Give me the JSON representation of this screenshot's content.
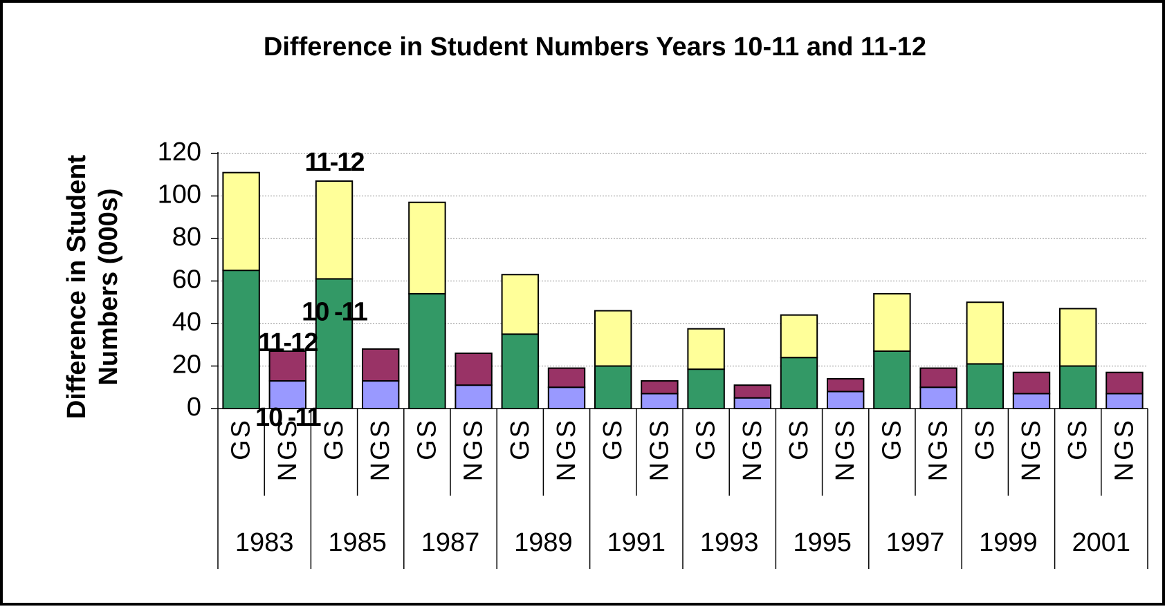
{
  "chart_data": {
    "type": "stacked_bar",
    "title": "Difference in Student Numbers Years 10-11 and 11-12",
    "y_label": [
      "Difference in Student",
      "Numbers (000s)"
    ],
    "categories": [
      "GS",
      "NGS",
      "GS",
      "NGS",
      "GS",
      "NGS",
      "GS",
      "NGS",
      "GS",
      "NGS",
      "GS",
      "NGS",
      "GS",
      "NGS",
      "GS",
      "NGS",
      "GS",
      "NGS",
      "GS",
      "NGS"
    ],
    "groups": [
      "1983",
      "1985",
      "1987",
      "1989",
      "1991",
      "1993",
      "1995",
      "1997",
      "1999",
      "2001"
    ],
    "series": [
      {
        "name": "10 -11",
        "color": "#339966",
        "values": [
          65,
          null,
          61,
          null,
          54,
          null,
          35,
          null,
          20,
          null,
          18.5,
          null,
          24,
          null,
          27,
          null,
          21,
          null,
          20,
          null
        ]
      },
      {
        "name": "11-12",
        "color": "#ffff99",
        "values": [
          46,
          null,
          46,
          null,
          43,
          null,
          28,
          null,
          26,
          null,
          19,
          null,
          20,
          null,
          27,
          null,
          29,
          null,
          27,
          null
        ]
      },
      {
        "name": "10 -11",
        "color": "#9999ff",
        "values": [
          null,
          13,
          null,
          13,
          null,
          11,
          null,
          10,
          null,
          7,
          null,
          5,
          null,
          8,
          null,
          10,
          null,
          7,
          null,
          7
        ]
      },
      {
        "name": "11-12",
        "color": "#993366",
        "values": [
          null,
          14,
          null,
          15,
          null,
          15,
          null,
          9,
          null,
          6,
          null,
          6,
          null,
          6,
          null,
          9,
          null,
          10,
          null,
          10
        ]
      }
    ],
    "ylim": [
      0,
      120
    ],
    "yticks": [
      0,
      20,
      40,
      60,
      80,
      100,
      120
    ],
    "grid": true
  }
}
